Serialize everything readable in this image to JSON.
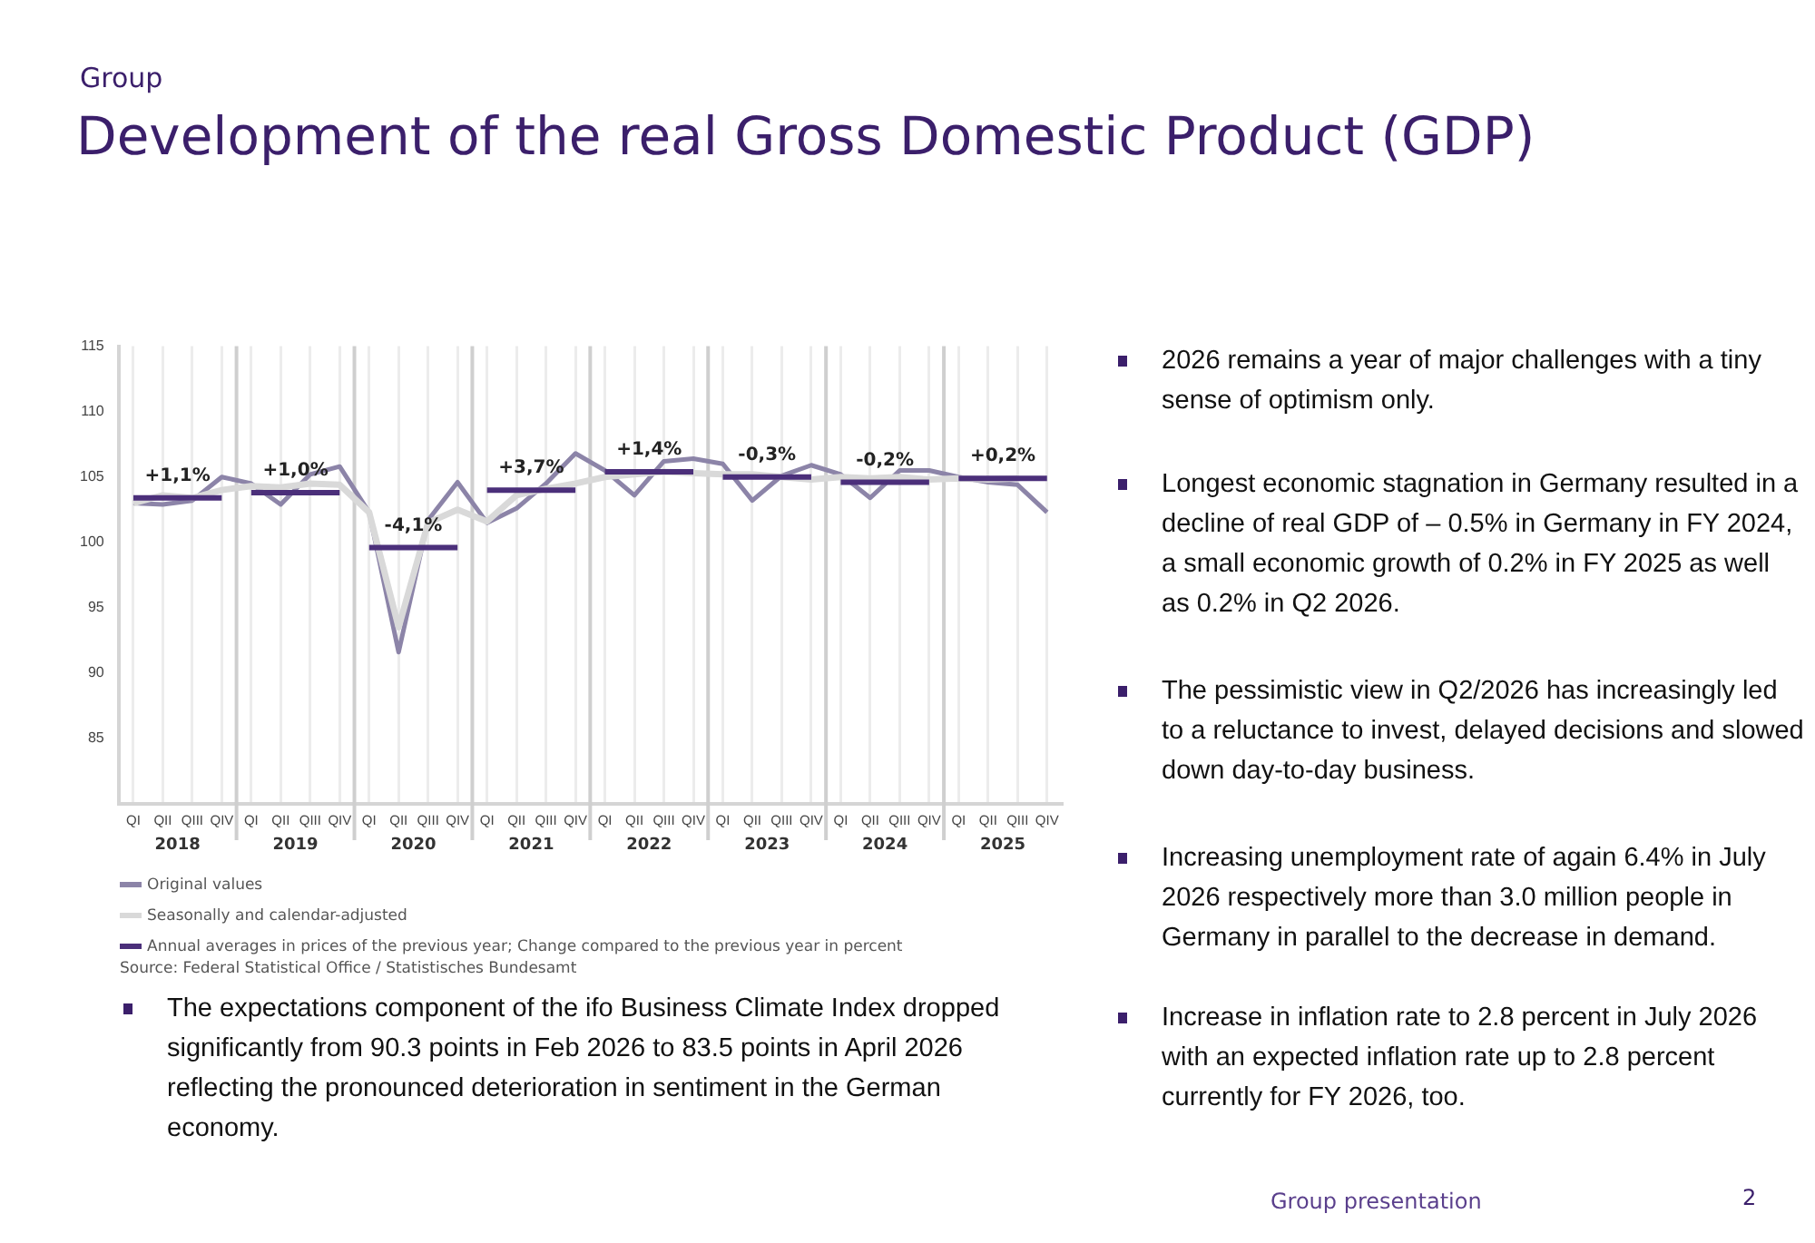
{
  "chart_data": {
    "type": "line",
    "subtitle": "Group",
    "title": "Development of the real Gross Domestic Product (GDP)",
    "categories": [
      "QI",
      "QII",
      "QIII",
      "QIV",
      "QI",
      "QII",
      "QIII",
      "QIV",
      "QI",
      "QII",
      "QIII",
      "QIV",
      "QI",
      "QII",
      "QIII",
      "QIV",
      "QI",
      "QII",
      "QIII",
      "QIV",
      "QI",
      "QII",
      "QIII",
      "QIV",
      "QI",
      "QII",
      "QIII",
      "QIV",
      "QI",
      "QII",
      "QIII",
      "QIV"
    ],
    "series": [
      {
        "name": "Original values",
        "color": "#8c84a8",
        "values": [
          103.0,
          102.9,
          103.2,
          105.0,
          104.5,
          102.9,
          105.2,
          105.8,
          102.3,
          91.6,
          101.7,
          104.6,
          101.5,
          102.6,
          104.5,
          106.8,
          105.5,
          103.6,
          106.2,
          106.4,
          106.0,
          103.2,
          105.1,
          105.9,
          105.2,
          103.4,
          105.5,
          105.5,
          105.0,
          104.6,
          104.4,
          102.3
        ]
      },
      {
        "name": "Seasonally and calendar-adjusted",
        "color": "#d9d9d9",
        "values": [
          103.0,
          103.6,
          103.4,
          104.0,
          104.3,
          104.2,
          104.5,
          104.4,
          102.3,
          93.5,
          101.5,
          102.5,
          101.6,
          103.6,
          104.1,
          104.5,
          105.0,
          105.2,
          105.4,
          105.3,
          105.2,
          105.2,
          105.0,
          104.8,
          105.0,
          104.9,
          105.0,
          104.8,
          104.9,
          104.8,
          104.9,
          null
        ]
      },
      {
        "name": "Annual averages in prices of the previous year; Change compared to the previous year in percent",
        "color": "#4b2f7a",
        "values": [
          103.4,
          103.4,
          103.4,
          103.4,
          103.8,
          103.8,
          103.8,
          103.8,
          99.6,
          99.6,
          99.6,
          99.6,
          104.0,
          104.0,
          104.0,
          104.0,
          105.4,
          105.4,
          105.4,
          105.4,
          105.0,
          105.0,
          105.0,
          105.0,
          104.6,
          104.6,
          104.6,
          104.6,
          104.9,
          104.9,
          104.9,
          104.9
        ]
      }
    ],
    "ylim": [
      80,
      115
    ],
    "yticks": [
      85,
      90,
      95,
      100,
      105,
      110,
      115
    ],
    "grid": "x",
    "legend": "bottom",
    "marker": "none",
    "annotations": [
      "2018",
      "2019",
      "2020",
      "2021",
      "2022",
      "2023",
      "2024",
      "2025",
      {
        "text": "+1,1%",
        "y": 103.4
      },
      {
        "text": "+1,0%",
        "y": 103.8
      },
      {
        "text": "-4,1%",
        "y": 99.6
      },
      {
        "text": "+3,7%",
        "y": 104.0
      },
      {
        "text": "+1,4%",
        "y": 105.4
      },
      {
        "text": "-0,3%",
        "y": 105.0
      },
      {
        "text": "-0,2%",
        "y": 104.6
      },
      {
        "text": "+0,2%",
        "y": 104.9
      },
      "Source: Federal Statistical Office / Statistisches Bundesamt",
      "The expectations component of the ifo Business Climate Index dropped significantly from 90.3 points in Feb 2026 to 83.5 points in April 2026 reflecting the pronounced deterioration in sentiment in the German economy.",
      "2026 remains a year of major challenges with a tiny sense of optimism only.",
      "Longest economic stagnation in Germany resulted in a decline of real GDP of – 0.5% in Germany in FY 2024, a small economic growth of 0.2% in FY 2025 as well as 0.2% in Q2 2026.",
      "The pessimistic view in Q2/2026 has increasingly led to a reluctance to invest, delayed decisions and slowed down day-to-day business.",
      "Increasing unemployment rate of again 6.4% in July 2026 respectively more than 3.0 million people in Germany in parallel to the decrease in demand.",
      "Increase in inflation rate to 2.8 percent in July 2026 with an expected inflation rate up to 2.8 percent currently for FY 2026, too.",
      "Group presentation",
      "2"
    ]
  }
}
